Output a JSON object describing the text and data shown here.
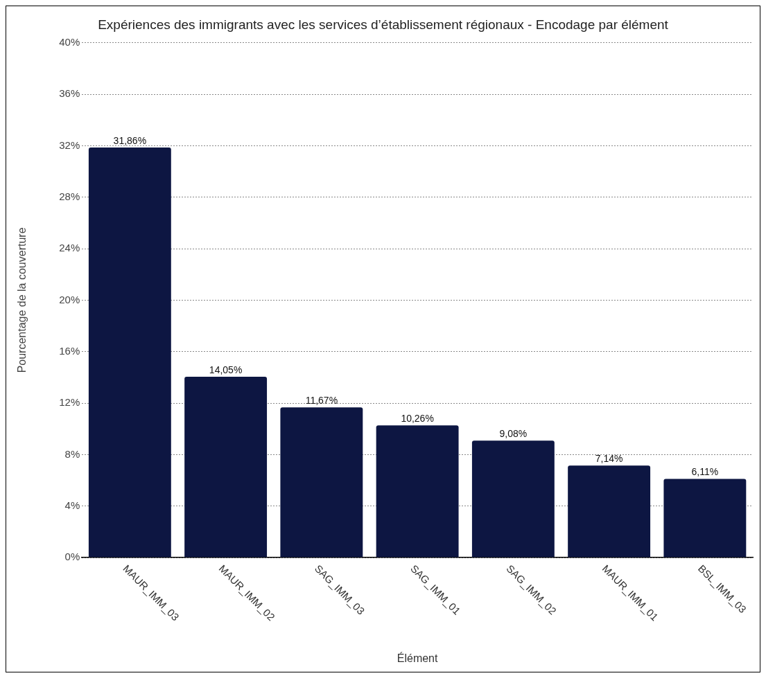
{
  "chart_data": {
    "type": "bar",
    "title": "Expériences des immigrants avec les services d’établissement régionaux - Encodage par élément",
    "xlabel": "Élément",
    "ylabel": "Pourcentage de la couverture",
    "categories": [
      "MAUR_IMM_03",
      "MAUR_IMM_02",
      "SAG_IMM_03",
      "SAG_IMM_01",
      "SAG_IMM_02",
      "MAUR_IMM_01",
      "BSL_IMM_03"
    ],
    "values": [
      31.86,
      14.05,
      11.67,
      10.26,
      9.08,
      7.14,
      6.11
    ],
    "value_labels": [
      "31,86%",
      "14,05%",
      "11,67%",
      "10,26%",
      "9,08%",
      "7,14%",
      "6,11%"
    ],
    "color": "#0d1642",
    "ylim": [
      0,
      40
    ],
    "yticks": [
      {
        "value": 0,
        "label": "0%"
      },
      {
        "value": 4,
        "label": "4%"
      },
      {
        "value": 8,
        "label": "8%"
      },
      {
        "value": 12,
        "label": "12%"
      },
      {
        "value": 16,
        "label": "16%"
      },
      {
        "value": 20,
        "label": "20%"
      },
      {
        "value": 24,
        "label": "24%"
      },
      {
        "value": 28,
        "label": "28%"
      },
      {
        "value": 32,
        "label": "32%"
      },
      {
        "value": 36,
        "label": "36%"
      },
      {
        "value": 40,
        "label": "40%"
      }
    ],
    "grid": "y"
  }
}
